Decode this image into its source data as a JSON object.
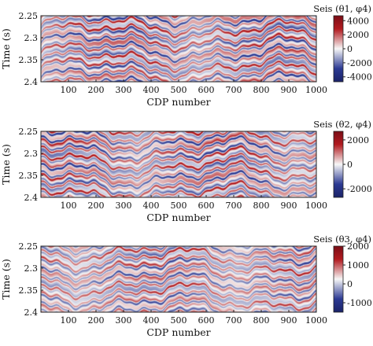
{
  "chart_data": [
    {
      "type": "heatmap",
      "xlabel": "CDP number",
      "ylabel": "Time (s)",
      "xlim": [
        0,
        1000
      ],
      "ylim": [
        2.25,
        2.4
      ],
      "xticks": [
        "100",
        "200",
        "300",
        "400",
        "500",
        "600",
        "700",
        "800",
        "900",
        "1000"
      ],
      "yticks": [
        "2.25",
        "2.3",
        "2.35",
        "2.4"
      ],
      "colorbar": {
        "title": "Seis (θ1, φ4)",
        "ticks": [
          "4000",
          "2000",
          "0",
          "-2000",
          "-4000"
        ],
        "vmin": -4700,
        "vmax": 4700
      },
      "colors": {
        "low": "#2c3a93",
        "mid": "#f7f7f7",
        "high": "#b11a1f"
      }
    },
    {
      "type": "heatmap",
      "xlabel": "CDP number",
      "ylabel": "Time (s)",
      "xlim": [
        0,
        1000
      ],
      "ylim": [
        2.25,
        2.4
      ],
      "xticks": [
        "100",
        "200",
        "300",
        "400",
        "500",
        "600",
        "700",
        "800",
        "900",
        "1000"
      ],
      "yticks": [
        "2.25",
        "2.3",
        "2.35",
        "2.4"
      ],
      "colorbar": {
        "title": "Seis (θ2, φ4)",
        "ticks": [
          "2000",
          "0",
          "-2000"
        ],
        "vmin": -2700,
        "vmax": 2700
      },
      "colors": {
        "low": "#2c3a93",
        "mid": "#f7f7f7",
        "high": "#b11a1f"
      }
    },
    {
      "type": "heatmap",
      "xlabel": "CDP number",
      "ylabel": "Time (s)",
      "xlim": [
        0,
        1000
      ],
      "ylim": [
        2.25,
        2.4
      ],
      "xticks": [
        "100",
        "200",
        "300",
        "400",
        "500",
        "600",
        "700",
        "800",
        "900",
        "1000"
      ],
      "yticks": [
        "2.25",
        "2.3",
        "2.35",
        "2.4"
      ],
      "colorbar": {
        "title": "Seis (θ3, φ4)",
        "ticks": [
          "2000",
          "1000",
          "0",
          "-1000"
        ],
        "vmin": -1500,
        "vmax": 2000
      },
      "colors": {
        "low": "#2c3a93",
        "mid": "#f7f7f7",
        "high": "#b11a1f"
      }
    }
  ]
}
